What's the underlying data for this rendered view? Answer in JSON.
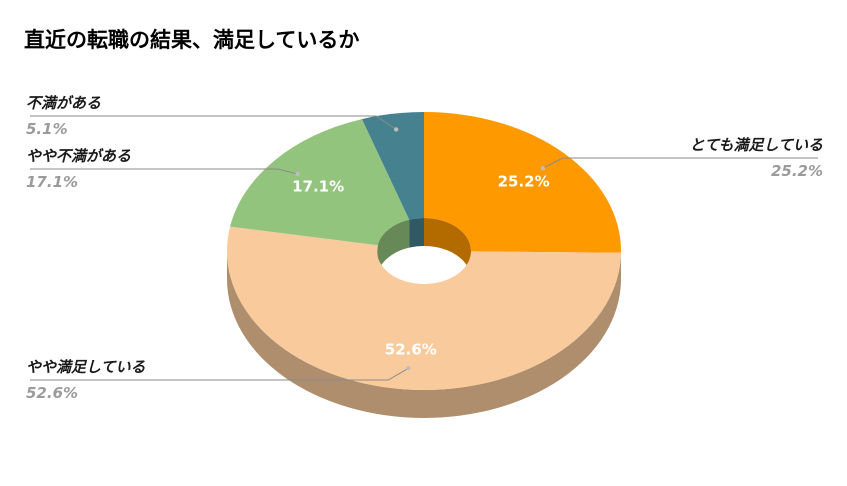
{
  "title": "直近の転職の結果、満足しているか",
  "chart_data": {
    "type": "pie",
    "style": "3d-doughnut",
    "title": "直近の転職の結果、満足しているか",
    "slices": [
      {
        "name": "とても満足している",
        "value": 25.2,
        "label": "25.2%",
        "color": "#ff9900"
      },
      {
        "name": "やや満足している",
        "value": 52.6,
        "label": "52.6%",
        "color": "#f9cb9c"
      },
      {
        "name": "やや不満がある",
        "value": 17.1,
        "label": "17.1%",
        "color": "#93c47d"
      },
      {
        "name": "不満がある",
        "value": 5.1,
        "label": "5.1%",
        "color": "#45818e"
      }
    ],
    "legend": "none",
    "data_labels": "inside-and-outside"
  }
}
